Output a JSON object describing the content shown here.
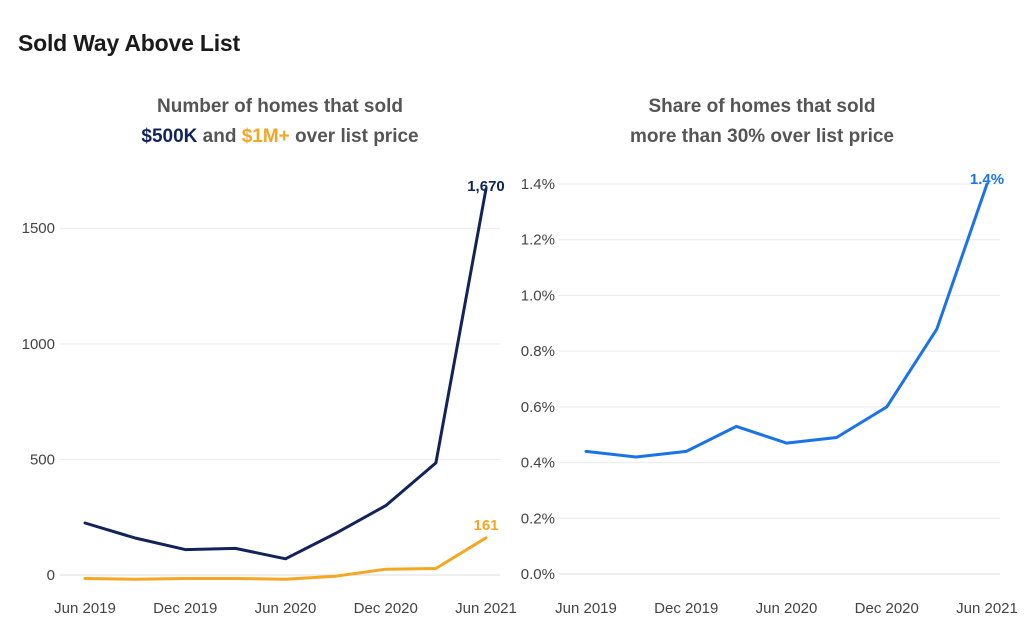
{
  "page": {
    "title": "Sold Way Above List"
  },
  "colors": {
    "navy": "#12235a",
    "gold": "#f5a623",
    "blue": "#1a73e8"
  },
  "chart_data": [
    {
      "type": "line",
      "title_parts": {
        "line1": "Number of homes that sold",
        "series_a": "$500K",
        "connector": " and ",
        "series_b": "$1M+",
        "suffix": " over list price"
      },
      "x": [
        "2019-06",
        "2019-09",
        "2019-12",
        "2020-03",
        "2020-06",
        "2020-09",
        "2020-12",
        "2021-03",
        "2021-06"
      ],
      "x_ticks": [
        {
          "pos": 0,
          "label": "Jun 2019"
        },
        {
          "pos": 2,
          "label": "Dec 2019"
        },
        {
          "pos": 4,
          "label": "Jun 2020"
        },
        {
          "pos": 6,
          "label": "Dec 2020"
        },
        {
          "pos": 8,
          "label": "Jun 2021"
        }
      ],
      "y_ticks": [
        {
          "value": 0,
          "label": "0"
        },
        {
          "value": 500,
          "label": "500"
        },
        {
          "value": 1000,
          "label": "1000"
        },
        {
          "value": 1500,
          "label": "1500"
        }
      ],
      "ylim": [
        0,
        1700
      ],
      "series": [
        {
          "name": "$500K",
          "color": "#12235a",
          "values": [
            225,
            160,
            110,
            115,
            70,
            180,
            300,
            485,
            1670
          ],
          "end_label": "1,670"
        },
        {
          "name": "$1M+",
          "color": "#f5a623",
          "values": [
            -15,
            -18,
            -15,
            -15,
            -18,
            -5,
            25,
            28,
            161
          ],
          "end_label": "161"
        }
      ]
    },
    {
      "type": "line",
      "title_parts": {
        "line1": "Share of homes that sold",
        "line2": "more than 30% over list price"
      },
      "x": [
        "2019-06",
        "2019-09",
        "2019-12",
        "2020-03",
        "2020-06",
        "2020-09",
        "2020-12",
        "2021-03",
        "2021-06"
      ],
      "x_ticks": [
        {
          "pos": 0,
          "label": "Jun 2019"
        },
        {
          "pos": 2,
          "label": "Dec 2019"
        },
        {
          "pos": 4,
          "label": "Jun 2020"
        },
        {
          "pos": 6,
          "label": "Dec 2020"
        },
        {
          "pos": 8,
          "label": "Jun 2021"
        }
      ],
      "y_ticks": [
        {
          "value": 0.0,
          "label": "0.0%"
        },
        {
          "value": 0.2,
          "label": "0.2%"
        },
        {
          "value": 0.4,
          "label": "0.4%"
        },
        {
          "value": 0.6,
          "label": "0.6%"
        },
        {
          "value": 0.8,
          "label": "0.8%"
        },
        {
          "value": 1.0,
          "label": "1.0%"
        },
        {
          "value": 1.2,
          "label": "1.2%"
        },
        {
          "value": 1.4,
          "label": "1.4%"
        }
      ],
      "ylim": [
        0,
        1.4
      ],
      "series": [
        {
          "name": "Share >30% over list",
          "color": "#1a73e8",
          "values": [
            0.44,
            0.42,
            0.44,
            0.53,
            0.47,
            0.49,
            0.6,
            0.88,
            1.4
          ],
          "end_label": "1.4%"
        }
      ]
    }
  ]
}
